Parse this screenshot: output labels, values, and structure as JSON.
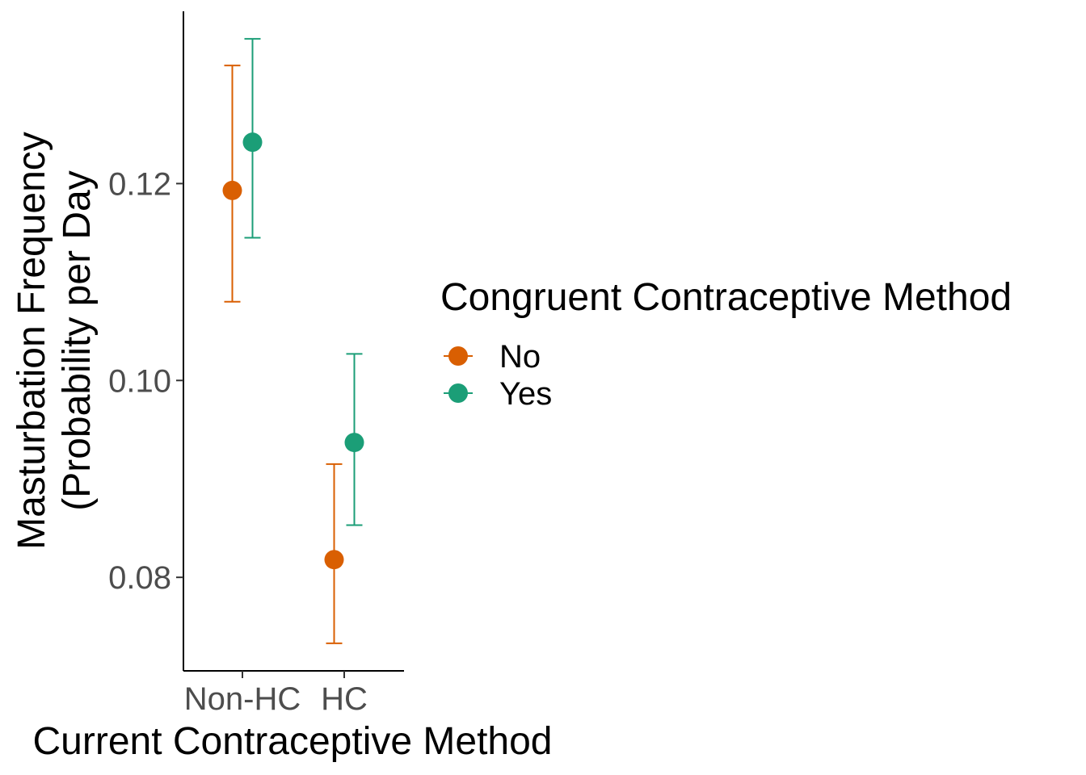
{
  "chart_data": {
    "type": "scatter",
    "xlabel": "Current Contraceptive Method",
    "ylabel_lines": [
      "Masturbation Frequency",
      "(Probability per Day"
    ],
    "categories": [
      "Non-HC",
      "HC"
    ],
    "y_ticks": [
      0.08,
      0.1,
      0.12
    ],
    "y_tick_labels": [
      "0.08",
      "0.10",
      "0.12"
    ],
    "ylim": [
      0.0705,
      0.1375
    ],
    "legend": {
      "title": "Congruent Contraceptive Method",
      "placement": "right"
    },
    "series": [
      {
        "name": "No",
        "color": "#D95F02",
        "points": [
          {
            "category": "Non-HC",
            "y": 0.1193,
            "lower": 0.108,
            "upper": 0.132
          },
          {
            "category": "HC",
            "y": 0.0818,
            "lower": 0.0733,
            "upper": 0.0915
          }
        ]
      },
      {
        "name": "Yes",
        "color": "#1B9E77",
        "points": [
          {
            "category": "Non-HC",
            "y": 0.1242,
            "lower": 0.1145,
            "upper": 0.1347
          },
          {
            "category": "HC",
            "y": 0.0937,
            "lower": 0.0853,
            "upper": 0.1027
          }
        ]
      }
    ]
  }
}
